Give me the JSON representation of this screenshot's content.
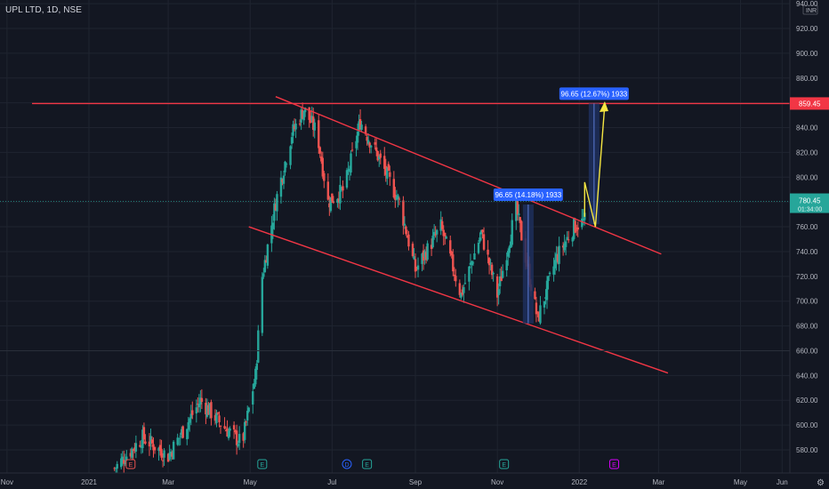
{
  "symbol_header": "UPL LTD, 1D, NSE",
  "currency": "INR",
  "colors": {
    "background": "#131722",
    "grid": "#1f2430",
    "up": "#26a69a",
    "down": "#ef5350",
    "trendline": "#f23645",
    "projection": "#f5e642",
    "measure_box": "#1e2f5c",
    "measure_label": "#2962ff",
    "current_price": "#26a69a",
    "event_earnings": "#26a69a",
    "event_dividend": "#2962ff",
    "event_future": "#d500f9"
  },
  "chart_data": {
    "type": "candlestick",
    "title": "UPL LTD, 1D, NSE",
    "ylim": [
      570,
      945
    ],
    "y_ticks": [
      580,
      600,
      620,
      640,
      660,
      680,
      700,
      720,
      740,
      760,
      780,
      800,
      820,
      840,
      860,
      880,
      900,
      920,
      940
    ],
    "y_tick_labels": [
      "580.00",
      "600.00",
      "620.00",
      "640.00",
      "660.00",
      "680.00",
      "700.00",
      "720.00",
      "740.00",
      "760.00",
      "780.00",
      "800.00",
      "820.00",
      "840.00",
      "860.00",
      "880.00",
      "900.00",
      "920.00",
      "940.00"
    ],
    "x_labels": [
      "Nov",
      "2021",
      "Mar",
      "May",
      "Jul",
      "Sep",
      "Nov",
      "2022",
      "Mar",
      "May",
      "Jun"
    ],
    "x_label_dates": [
      "2020-11-01",
      "2021-01-01",
      "2021-03-01",
      "2021-05-01",
      "2021-07-01",
      "2021-09-01",
      "2021-11-01",
      "2022-01-01",
      "2022-03-01",
      "2022-05-01",
      "2022-06-01"
    ],
    "price_path": [
      [
        "2021-01-20",
        565
      ],
      [
        "2021-02-10",
        590
      ],
      [
        "2021-03-01",
        575
      ],
      [
        "2021-03-25",
        620
      ],
      [
        "2021-04-10",
        600
      ],
      [
        "2021-04-25",
        585
      ],
      [
        "2021-05-05",
        640
      ],
      [
        "2021-05-10",
        720
      ],
      [
        "2021-05-20",
        780
      ],
      [
        "2021-06-01",
        835
      ],
      [
        "2021-06-10",
        855
      ],
      [
        "2021-06-20",
        835
      ],
      [
        "2021-06-28",
        780
      ],
      [
        "2021-07-10",
        790
      ],
      [
        "2021-07-22",
        845
      ],
      [
        "2021-08-05",
        815
      ],
      [
        "2021-08-20",
        780
      ],
      [
        "2021-09-01",
        725
      ],
      [
        "2021-09-20",
        760
      ],
      [
        "2021-10-05",
        705
      ],
      [
        "2021-10-20",
        755
      ],
      [
        "2021-11-01",
        705
      ],
      [
        "2021-11-15",
        775
      ],
      [
        "2021-12-01",
        685
      ],
      [
        "2021-12-15",
        735
      ],
      [
        "2021-12-28",
        760
      ],
      [
        "2022-01-05",
        765
      ]
    ],
    "horizontal_line": {
      "price": 859.45,
      "label": "859.45"
    },
    "current_price": {
      "price": 780.45,
      "label": "780.45",
      "countdown": "01:34:00"
    },
    "secondary_price_level": 660,
    "trendlines": [
      {
        "name": "channel-upper",
        "from": [
          "2021-05-20",
          865
        ],
        "to": [
          "2022-03-03",
          738
        ]
      },
      {
        "name": "channel-lower",
        "from": [
          "2021-04-30",
          760
        ],
        "to": [
          "2022-03-08",
          642
        ]
      }
    ],
    "measurements": [
      {
        "label": "96.65 (14.18%) 1933",
        "x_start": "2021-11-20",
        "x_end": "2021-11-28",
        "y_low": 682,
        "y_high": 778
      },
      {
        "label": "96.65 (12.67%) 1933",
        "x_start": "2022-01-08",
        "x_end": "2022-01-16",
        "y_low": 762,
        "y_high": 859.45
      }
    ],
    "projection_path": [
      [
        "2022-01-05",
        768
      ],
      [
        "2022-01-05",
        796
      ],
      [
        "2022-01-13",
        760
      ],
      [
        "2022-01-20",
        859
      ]
    ],
    "events": [
      {
        "date": "2020-10-20",
        "symbol": "E",
        "kind": "earnings"
      },
      {
        "date": "2021-02-01",
        "symbol": "E",
        "kind": "earnings-red"
      },
      {
        "date": "2021-05-10",
        "symbol": "E",
        "kind": "earnings"
      },
      {
        "date": "2021-07-12",
        "symbol": "D",
        "kind": "dividend"
      },
      {
        "date": "2021-07-27",
        "symbol": "E",
        "kind": "earnings"
      },
      {
        "date": "2021-11-06",
        "symbol": "E",
        "kind": "earnings"
      },
      {
        "date": "2022-01-27",
        "symbol": "E",
        "kind": "future"
      }
    ]
  }
}
